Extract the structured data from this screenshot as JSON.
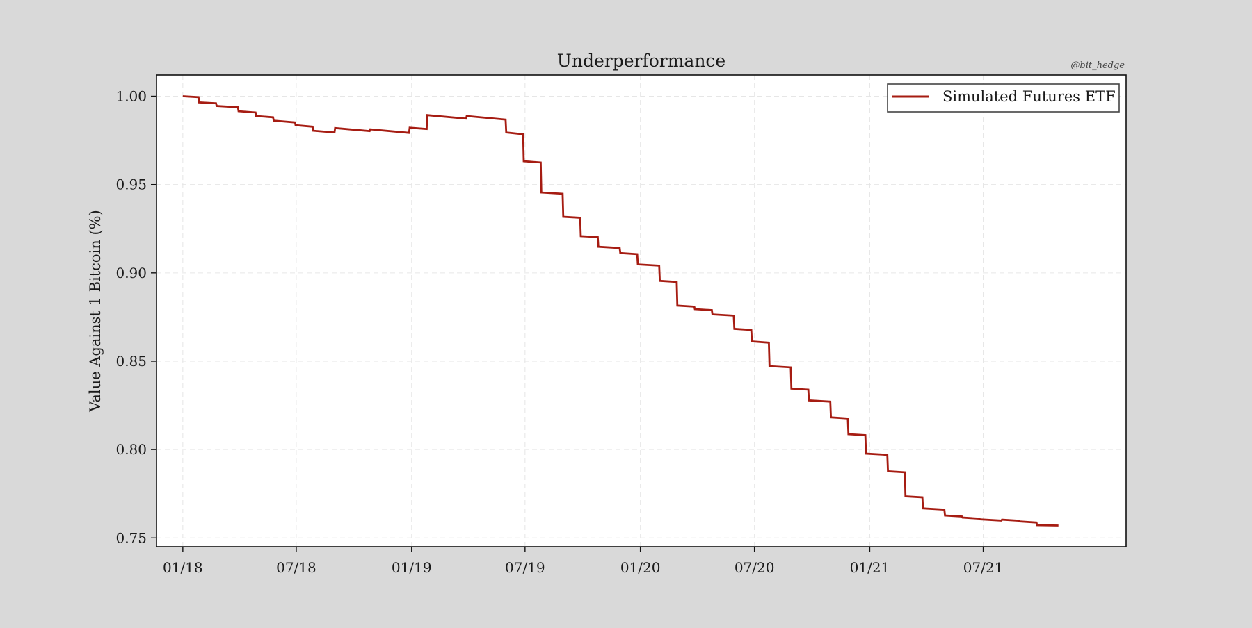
{
  "chart_data": {
    "type": "line",
    "title": "Underperformance",
    "credit": "@bit_hedge",
    "xlabel": "",
    "ylabel": "Value Against 1 Bitcoin (%)",
    "xlim": [
      "2017-11-20",
      "2022-02-14"
    ],
    "ylim": [
      0.745,
      1.012
    ],
    "x_ticks": [
      "2018-01-01",
      "2018-07-01",
      "2019-01-01",
      "2019-07-01",
      "2020-01-01",
      "2020-07-01",
      "2021-01-01",
      "2021-07-01"
    ],
    "x_tick_labels": [
      "01/18",
      "07/18",
      "01/19",
      "07/19",
      "01/20",
      "07/20",
      "01/21",
      "07/21"
    ],
    "y_ticks": [
      0.75,
      0.8,
      0.85,
      0.9,
      0.95,
      1.0
    ],
    "y_tick_labels": [
      "0.75",
      "0.80",
      "0.85",
      "0.90",
      "0.95",
      "1.00"
    ],
    "grid": true,
    "legend_position": "top-right",
    "series": [
      {
        "name": "Simulated Futures ETF",
        "color": "#a61c12",
        "points": [
          [
            "2018-01-01",
            1.0
          ],
          [
            "2018-01-26",
            0.9995
          ],
          [
            "2018-01-27",
            0.9965
          ],
          [
            "2018-02-23",
            0.996
          ],
          [
            "2018-02-24",
            0.9945
          ],
          [
            "2018-03-30",
            0.9938
          ],
          [
            "2018-03-31",
            0.9915
          ],
          [
            "2018-04-27",
            0.9908
          ],
          [
            "2018-04-28",
            0.9888
          ],
          [
            "2018-05-25",
            0.9881
          ],
          [
            "2018-05-26",
            0.9862
          ],
          [
            "2018-06-29",
            0.9852
          ],
          [
            "2018-06-30",
            0.9836
          ],
          [
            "2018-07-27",
            0.9828
          ],
          [
            "2018-07-28",
            0.9805
          ],
          [
            "2018-08-31",
            0.9795
          ],
          [
            "2018-09-01",
            0.982
          ],
          [
            "2018-10-26",
            0.9803
          ],
          [
            "2018-10-27",
            0.9813
          ],
          [
            "2018-12-28",
            0.9793
          ],
          [
            "2018-12-29",
            0.9822
          ],
          [
            "2019-01-25",
            0.9815
          ],
          [
            "2019-01-26",
            0.9893
          ],
          [
            "2019-03-29",
            0.9873
          ],
          [
            "2019-03-30",
            0.9888
          ],
          [
            "2019-05-31",
            0.9868
          ],
          [
            "2019-06-01",
            0.9795
          ],
          [
            "2019-06-28",
            0.9785
          ],
          [
            "2019-06-29",
            0.9632
          ],
          [
            "2019-07-26",
            0.9625
          ],
          [
            "2019-07-27",
            0.9455
          ],
          [
            "2019-08-30",
            0.9448
          ],
          [
            "2019-08-31",
            0.9318
          ],
          [
            "2019-09-27",
            0.9312
          ],
          [
            "2019-09-28",
            0.9208
          ],
          [
            "2019-10-25",
            0.9203
          ],
          [
            "2019-10-26",
            0.9148
          ],
          [
            "2019-11-29",
            0.9141
          ],
          [
            "2019-11-30",
            0.9112
          ],
          [
            "2019-12-27",
            0.9106
          ],
          [
            "2019-12-28",
            0.9048
          ],
          [
            "2020-01-31",
            0.9041
          ],
          [
            "2020-02-01",
            0.8955
          ],
          [
            "2020-02-28",
            0.8949
          ],
          [
            "2020-02-29",
            0.8815
          ],
          [
            "2020-03-27",
            0.8809
          ],
          [
            "2020-03-28",
            0.8795
          ],
          [
            "2020-04-24",
            0.8789
          ],
          [
            "2020-04-25",
            0.8765
          ],
          [
            "2020-05-29",
            0.8758
          ],
          [
            "2020-05-30",
            0.8683
          ],
          [
            "2020-06-26",
            0.8677
          ],
          [
            "2020-06-27",
            0.8612
          ],
          [
            "2020-07-24",
            0.8605
          ],
          [
            "2020-07-25",
            0.8472
          ],
          [
            "2020-08-28",
            0.8465
          ],
          [
            "2020-08-29",
            0.8345
          ],
          [
            "2020-09-25",
            0.8339
          ],
          [
            "2020-09-26",
            0.8278
          ],
          [
            "2020-10-30",
            0.8271
          ],
          [
            "2020-10-31",
            0.8182
          ],
          [
            "2020-11-27",
            0.8176
          ],
          [
            "2020-11-28",
            0.8087
          ],
          [
            "2020-12-25",
            0.8081
          ],
          [
            "2020-12-26",
            0.7977
          ],
          [
            "2021-01-29",
            0.797
          ],
          [
            "2021-01-30",
            0.7877
          ],
          [
            "2021-02-26",
            0.7871
          ],
          [
            "2021-02-27",
            0.7735
          ],
          [
            "2021-03-26",
            0.7729
          ],
          [
            "2021-03-27",
            0.7667
          ],
          [
            "2021-04-30",
            0.766
          ],
          [
            "2021-05-01",
            0.7627
          ],
          [
            "2021-05-28",
            0.7621
          ],
          [
            "2021-05-29",
            0.7615
          ],
          [
            "2021-06-25",
            0.7609
          ],
          [
            "2021-06-26",
            0.7605
          ],
          [
            "2021-07-30",
            0.7598
          ],
          [
            "2021-07-31",
            0.7603
          ],
          [
            "2021-08-27",
            0.7597
          ],
          [
            "2021-08-28",
            0.7593
          ],
          [
            "2021-09-24",
            0.7587
          ],
          [
            "2021-09-25",
            0.7572
          ],
          [
            "2021-10-29",
            0.757
          ]
        ]
      }
    ]
  }
}
